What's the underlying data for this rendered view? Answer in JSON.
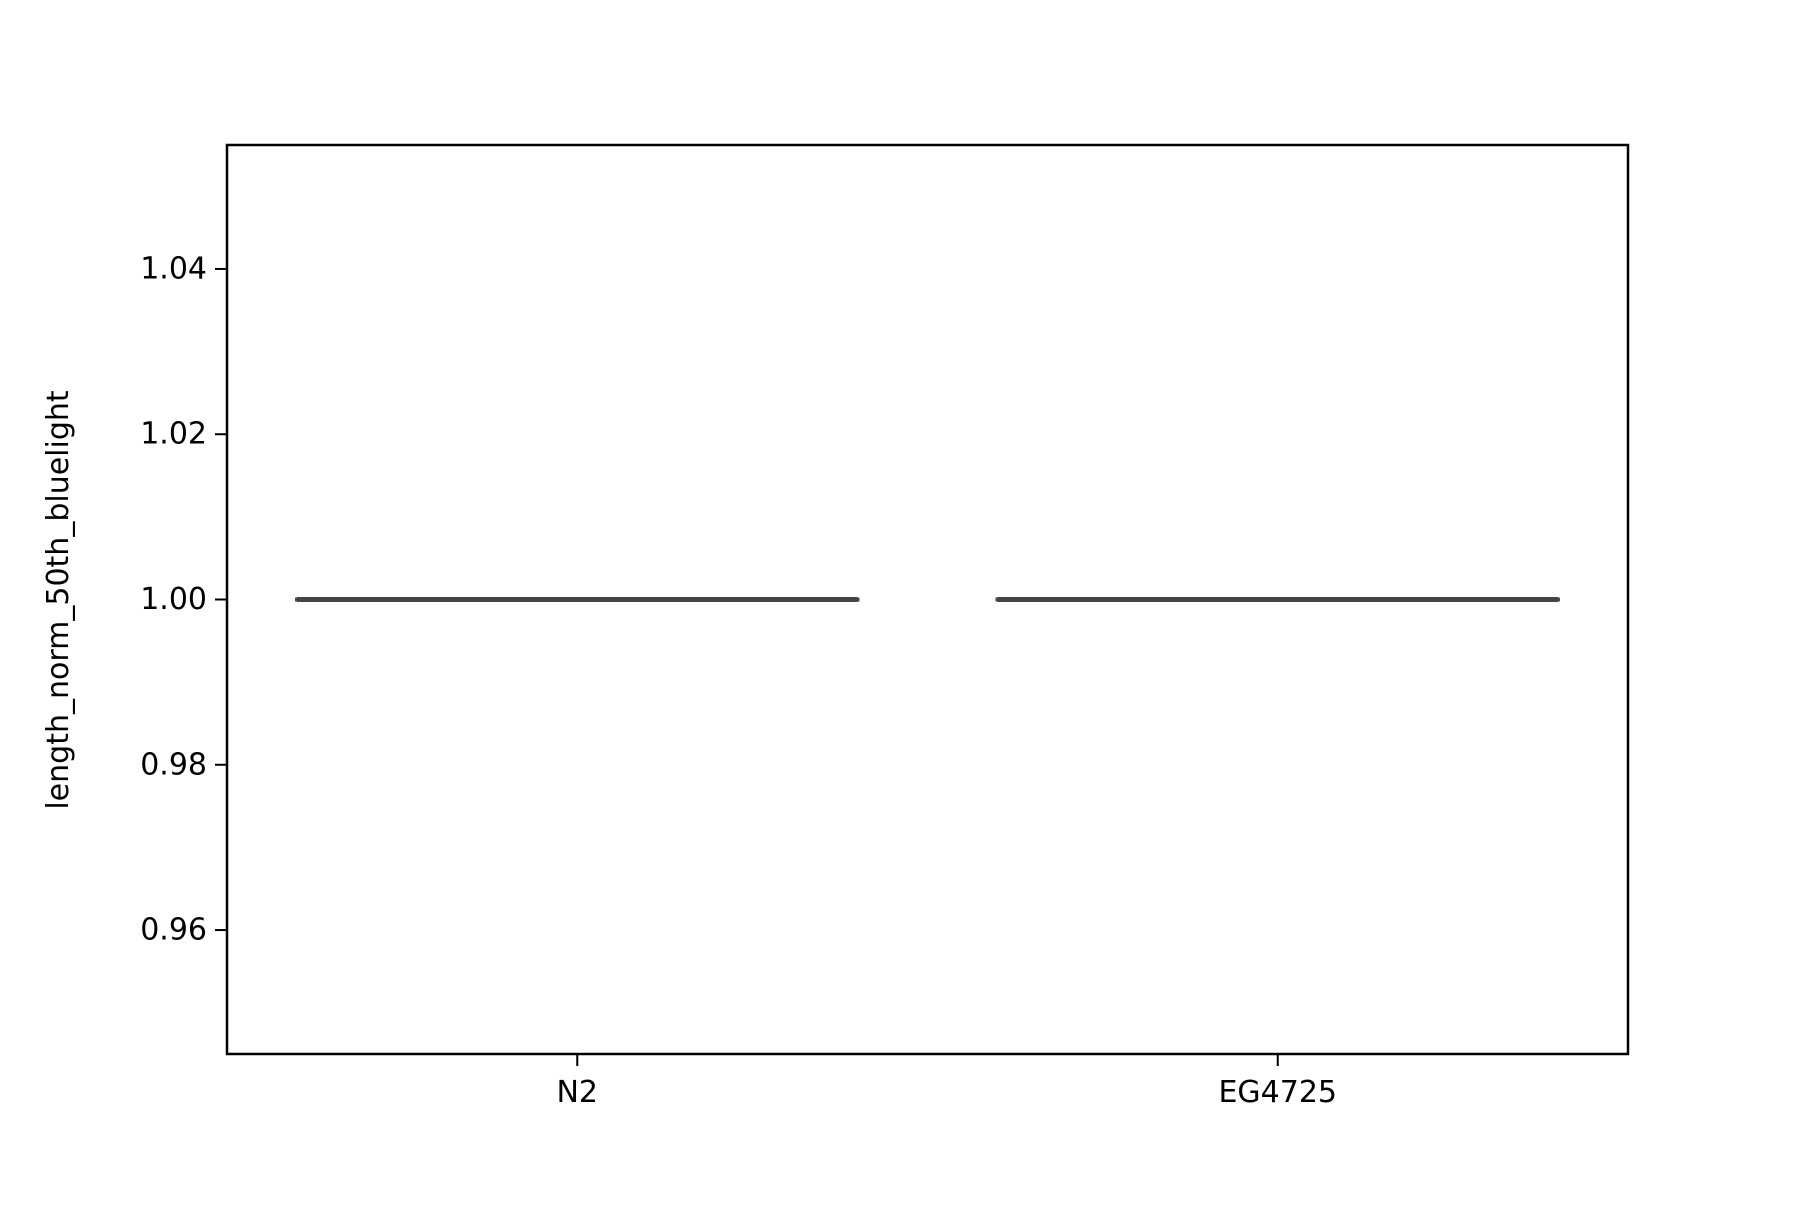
{
  "chart_data": {
    "type": "box",
    "title": "",
    "xlabel": "",
    "ylabel": "length_norm_50th_bluelight",
    "categories": [
      "N2",
      "EG4725"
    ],
    "series": [
      {
        "values": [
          {
            "category": "N2",
            "min": 1.0,
            "q1": 1.0,
            "median": 1.0,
            "q3": 1.0,
            "max": 1.0
          },
          {
            "category": "EG4725",
            "min": 1.0,
            "q1": 1.0,
            "median": 1.0,
            "q3": 1.0,
            "max": 1.0
          }
        ]
      }
    ],
    "ylim": [
      0.945,
      1.055
    ],
    "yticks": [
      0.96,
      0.98,
      1.0,
      1.02,
      1.04
    ],
    "ytick_labels": [
      "0.96",
      "0.98",
      "1.00",
      "1.02",
      "1.04"
    ],
    "grid": false,
    "legend": "none",
    "colors": {
      "box": "#444444",
      "axes": "#000000"
    }
  }
}
